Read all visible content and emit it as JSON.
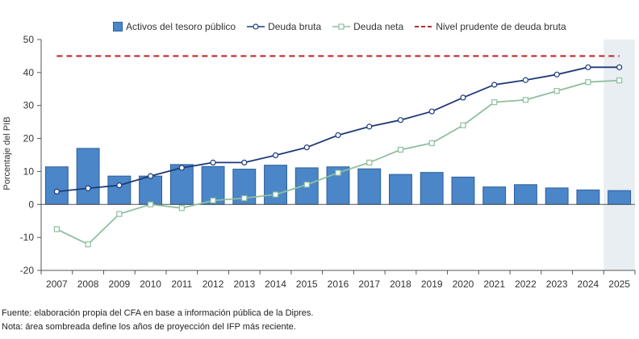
{
  "chart_data": {
    "type": "bar",
    "categories": [
      "2007",
      "2008",
      "2009",
      "2010",
      "2011",
      "2012",
      "2013",
      "2014",
      "2015",
      "2016",
      "2017",
      "2018",
      "2019",
      "2020",
      "2021",
      "2022",
      "2023",
      "2024",
      "2025"
    ],
    "series": [
      {
        "name": "Activos del tesoro público",
        "kind": "bar",
        "color": "#4a86c8",
        "values": [
          11.4,
          17.0,
          8.6,
          8.6,
          12.1,
          11.5,
          10.7,
          11.9,
          11.1,
          11.4,
          10.8,
          9.1,
          9.7,
          8.3,
          5.3,
          6.0,
          5.0,
          4.4,
          4.2
        ]
      },
      {
        "name": "Deuda bruta",
        "kind": "line",
        "color": "#1f3a7a",
        "values": [
          3.9,
          4.9,
          5.8,
          8.6,
          11.1,
          12.7,
          12.7,
          14.9,
          17.3,
          21.0,
          23.6,
          25.6,
          28.2,
          32.4,
          36.3,
          37.7,
          39.4,
          41.6,
          41.6
        ]
      },
      {
        "name": "Deuda neta",
        "kind": "line",
        "color": "#8fbf9f",
        "values": [
          -7.5,
          -12.1,
          -2.9,
          0.0,
          -1.1,
          1.2,
          1.9,
          3.0,
          6.0,
          9.6,
          12.7,
          16.6,
          18.6,
          24.0,
          31.0,
          31.7,
          34.4,
          37.1,
          37.6
        ]
      },
      {
        "name": "Nivel prudente de deuda bruta",
        "kind": "dashed",
        "color": "#c0282d",
        "values": [
          45,
          45,
          45,
          45,
          45,
          45,
          45,
          45,
          45,
          45,
          45,
          45,
          45,
          45,
          45,
          45,
          45,
          45,
          45
        ]
      }
    ],
    "ylabel": "Porcentaje del PIB",
    "ylim": [
      -20,
      50
    ],
    "yticks": [
      -20,
      -10,
      0,
      10,
      20,
      30,
      40,
      50
    ],
    "shaded_categories": [
      "2025"
    ],
    "legend_position": "top-center",
    "grid": false
  },
  "legend": {
    "bars": "Activos del tesoro público",
    "gross": "Deuda bruta",
    "net": "Deuda neta",
    "prudent": "Nivel prudente de deuda bruta"
  },
  "notes": {
    "source": "Fuente: elaboración propia del CFA en base a información pública de la Dipres.",
    "note": "Nota: área sombreada define los años de proyección del IFP más reciente."
  },
  "colors": {
    "shade": "#e8eef2",
    "axis": "#555555"
  }
}
